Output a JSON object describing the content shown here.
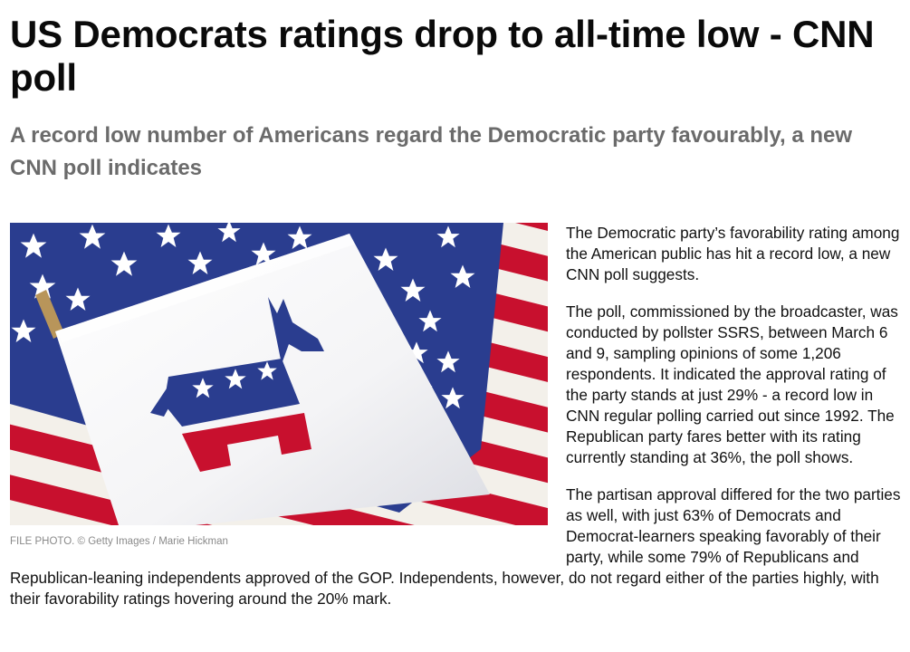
{
  "article": {
    "headline": "US Democrats ratings drop to all-time low - CNN poll",
    "subheadline": "A record low number of Americans regard the Democratic party favourably, a new CNN poll indicates",
    "image": {
      "icon": "democratic-donkey-flag-photo",
      "caption": "FILE PHOTO. ©  Getty Images / Marie Hickman"
    },
    "paragraphs": [
      "The Democratic party’s favorability rating among the American public has hit a record low, a new CNN poll suggests.",
      "The poll, commissioned by the broadcaster, was conducted by pollster SSRS, between March 6 and 9, sampling opinions of some 1,206 respondents. It indicated the approval rating of the party stands at just 29% - a record low in CNN regular polling carried out since 1992. The Republican party fares better with its rating currently standing at 36%, the poll shows.",
      "The partisan approval differed for the two parties as well, with just 63% of Democrats and Democrat-learners speaking favorably of their party, while some 79% of Republicans and Republican-leaning independents approved of the GOP. Independents, however, do not regard either of the parties highly, with their favorability ratings hovering around the 20% mark."
    ]
  },
  "colors": {
    "flag_blue": "#2a3d8f",
    "flag_red": "#c8102e",
    "headline": "#0a0a0a",
    "subheadline": "#6b6b6b",
    "caption": "#8a8a8a"
  }
}
